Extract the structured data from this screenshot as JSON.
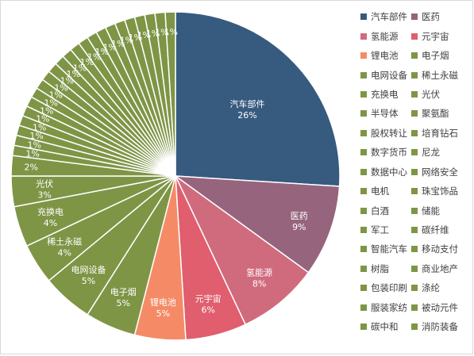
{
  "chart_data": {
    "type": "pie",
    "slices": [
      {
        "name": "汽车部件",
        "value": 26,
        "label": "26%",
        "color": "#375A7F"
      },
      {
        "name": "医药",
        "value": 9,
        "label": "9%",
        "color": "#96647D"
      },
      {
        "name": "氢能源",
        "value": 8,
        "label": "8%",
        "color": "#D06B7E"
      },
      {
        "name": "元宇宙",
        "value": 6,
        "label": "6%",
        "color": "#E05E6D"
      },
      {
        "name": "锂电池",
        "value": 5,
        "label": "5%",
        "color": "#F58B66"
      },
      {
        "name": "电子烟",
        "value": 5,
        "label": "5%",
        "color": "#7F9546"
      },
      {
        "name": "电网设备",
        "value": 5,
        "label": "5%",
        "color": "#7F9546"
      },
      {
        "name": "稀土永磁",
        "value": 4,
        "label": "4%",
        "color": "#7F9546"
      },
      {
        "name": "充换电",
        "value": 4,
        "label": "4%",
        "color": "#7F9546"
      },
      {
        "name": "光伏",
        "value": 3,
        "label": "3%",
        "color": "#7F9546"
      },
      {
        "name": "半导体",
        "value": 2,
        "label": "2%",
        "color": "#7F9546"
      },
      {
        "name": "聚氨酯",
        "value": 1,
        "label": "1%",
        "color": "#7F9546"
      },
      {
        "name": "股权转让",
        "value": 1,
        "label": "1%",
        "color": "#7F9546"
      },
      {
        "name": "培育钻石",
        "value": 1,
        "label": "1%",
        "color": "#7F9546"
      },
      {
        "name": "数字货币",
        "value": 1,
        "label": "1%",
        "color": "#7F9546"
      },
      {
        "name": "尼龙",
        "value": 1,
        "label": "1%",
        "color": "#7F9546"
      },
      {
        "name": "数据中心",
        "value": 1,
        "label": "1%",
        "color": "#7F9546"
      },
      {
        "name": "网络安全",
        "value": 1,
        "label": "1%",
        "color": "#7F9546"
      },
      {
        "name": "电机",
        "value": 1,
        "label": "1%",
        "color": "#7F9546"
      },
      {
        "name": "珠宝饰品",
        "value": 1,
        "label": "1%",
        "color": "#7F9546"
      },
      {
        "name": "白酒",
        "value": 1,
        "label": "1%",
        "color": "#7F9546"
      },
      {
        "name": "储能",
        "value": 1,
        "label": "1%",
        "color": "#7F9546"
      },
      {
        "name": "军工",
        "value": 1,
        "label": "1%",
        "color": "#7F9546"
      },
      {
        "name": "碳纤维",
        "value": 1,
        "label": "1%",
        "color": "#7F9546"
      },
      {
        "name": "智能汽车",
        "value": 1,
        "label": "1%",
        "color": "#7F9546"
      },
      {
        "name": "移动支付",
        "value": 1,
        "label": "1%",
        "color": "#7F9546"
      },
      {
        "name": "树脂",
        "value": 1,
        "label": "1%",
        "color": "#7F9546"
      },
      {
        "name": "商业地产",
        "value": 1,
        "label": "1%",
        "color": "#7F9546"
      },
      {
        "name": "包装印刷",
        "value": 1,
        "label": "1%",
        "color": "#7F9546"
      },
      {
        "name": "涤纶",
        "value": 1,
        "label": "1%",
        "color": "#7F9546"
      },
      {
        "name": "服装家纺",
        "value": 1,
        "label": "1%",
        "color": "#7F9546"
      },
      {
        "name": "被动元件",
        "value": 1,
        "label": "1%",
        "color": "#7F9546"
      },
      {
        "name": "碳中和",
        "value": 1,
        "label": "1%",
        "color": "#7F9546"
      },
      {
        "name": "消防装备",
        "value": 1,
        "label": "1%",
        "color": "#7F9546"
      }
    ],
    "legend_position": "right",
    "slice_border_color": "#ffffff"
  }
}
